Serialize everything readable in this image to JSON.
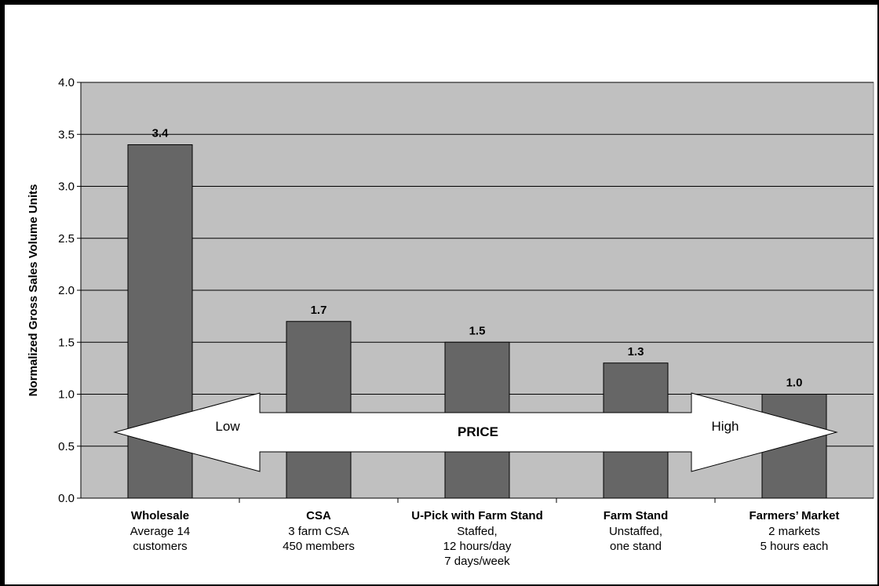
{
  "chart_data": {
    "type": "bar",
    "ylabel": "Normalized Gross Sales Volume Units",
    "ylim": [
      0,
      4.0
    ],
    "yticks": [
      "0.0",
      "0.5",
      "1.0",
      "1.5",
      "2.0",
      "2.5",
      "3.0",
      "3.5",
      "4.0"
    ],
    "grid": true,
    "categories": [
      {
        "title": "Wholesale",
        "lines": [
          "Average 14",
          "customers"
        ]
      },
      {
        "title": "CSA",
        "lines": [
          "3 farm CSA",
          "450 members"
        ]
      },
      {
        "title": "U-Pick with Farm Stand",
        "lines": [
          "Staffed,",
          "12 hours/day",
          "7 days/week"
        ]
      },
      {
        "title": "Farm Stand",
        "lines": [
          "Unstaffed,",
          "one stand"
        ]
      },
      {
        "title": "Farmers’ Market",
        "lines": [
          "2 markets",
          "5 hours each"
        ]
      }
    ],
    "values": [
      3.4,
      1.7,
      1.5,
      1.3,
      1.0
    ],
    "data_labels": [
      "3.4",
      "1.7",
      "1.5",
      "1.3",
      "1.0"
    ],
    "annotation": {
      "left_label": "Low",
      "center_label": "PRICE",
      "right_label": "High"
    },
    "colors": {
      "plot_bg": "#c0c0c0",
      "bar": "#666666",
      "arrow": "#ffffff"
    }
  }
}
